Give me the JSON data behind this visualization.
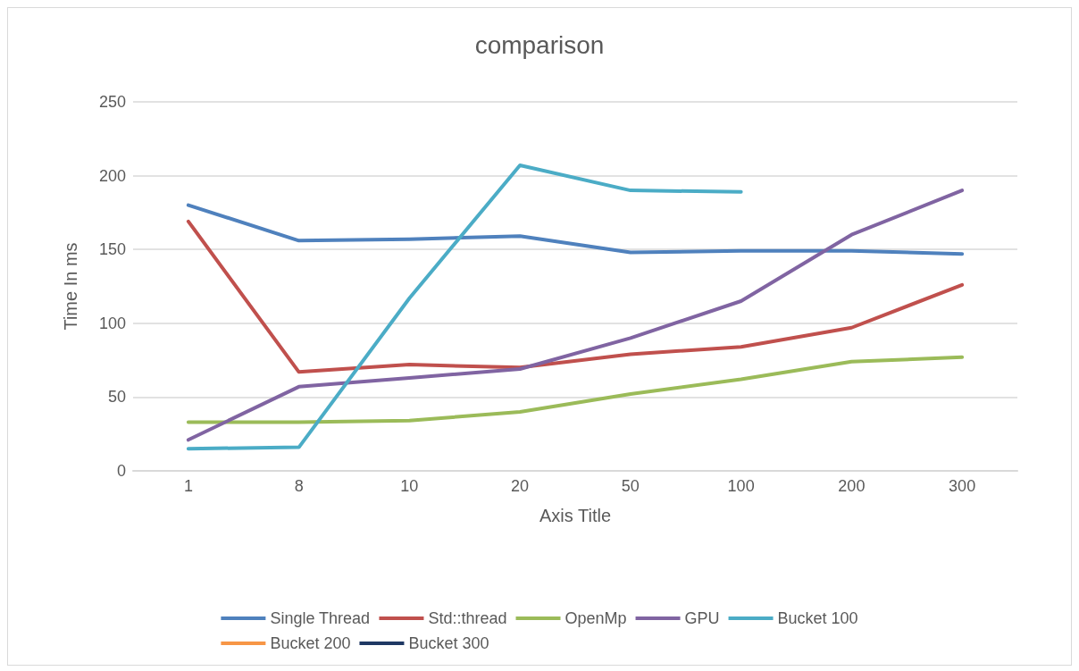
{
  "chart_data": {
    "type": "line",
    "title": "comparison",
    "xlabel": "Axis Title",
    "ylabel": "Time In ms",
    "categories": [
      "1",
      "8",
      "10",
      "20",
      "50",
      "100",
      "200",
      "300"
    ],
    "ylim": [
      0,
      250
    ],
    "yticks": [
      0,
      50,
      100,
      150,
      200,
      250
    ],
    "grid": "y",
    "legend": "bottom",
    "marker": "none",
    "line_style": "solid",
    "series": [
      {
        "name": "Single Thread",
        "color": "#4f81bd",
        "values": [
          180,
          156,
          157,
          159,
          148,
          149,
          149,
          147
        ]
      },
      {
        "name": "Std::thread",
        "color": "#c0504d",
        "values": [
          169,
          67,
          72,
          70,
          79,
          84,
          97,
          126
        ]
      },
      {
        "name": "OpenMp",
        "color": "#9bbb59",
        "values": [
          33,
          33,
          34,
          40,
          52,
          62,
          74,
          77
        ]
      },
      {
        "name": "GPU",
        "color": "#8064a2",
        "values": [
          21,
          57,
          63,
          69,
          90,
          115,
          160,
          190
        ]
      },
      {
        "name": "Bucket 100",
        "color": "#4bacc6",
        "values": [
          15,
          16,
          117,
          207,
          190,
          189,
          null,
          null
        ]
      },
      {
        "name": "Bucket 200",
        "color": "#f79646",
        "values": [
          null,
          null,
          null,
          null,
          null,
          null,
          null,
          null
        ]
      },
      {
        "name": "Bucket 300",
        "color": "#1f3864",
        "values": [
          null,
          null,
          null,
          null,
          null,
          null,
          null,
          null
        ]
      }
    ]
  }
}
